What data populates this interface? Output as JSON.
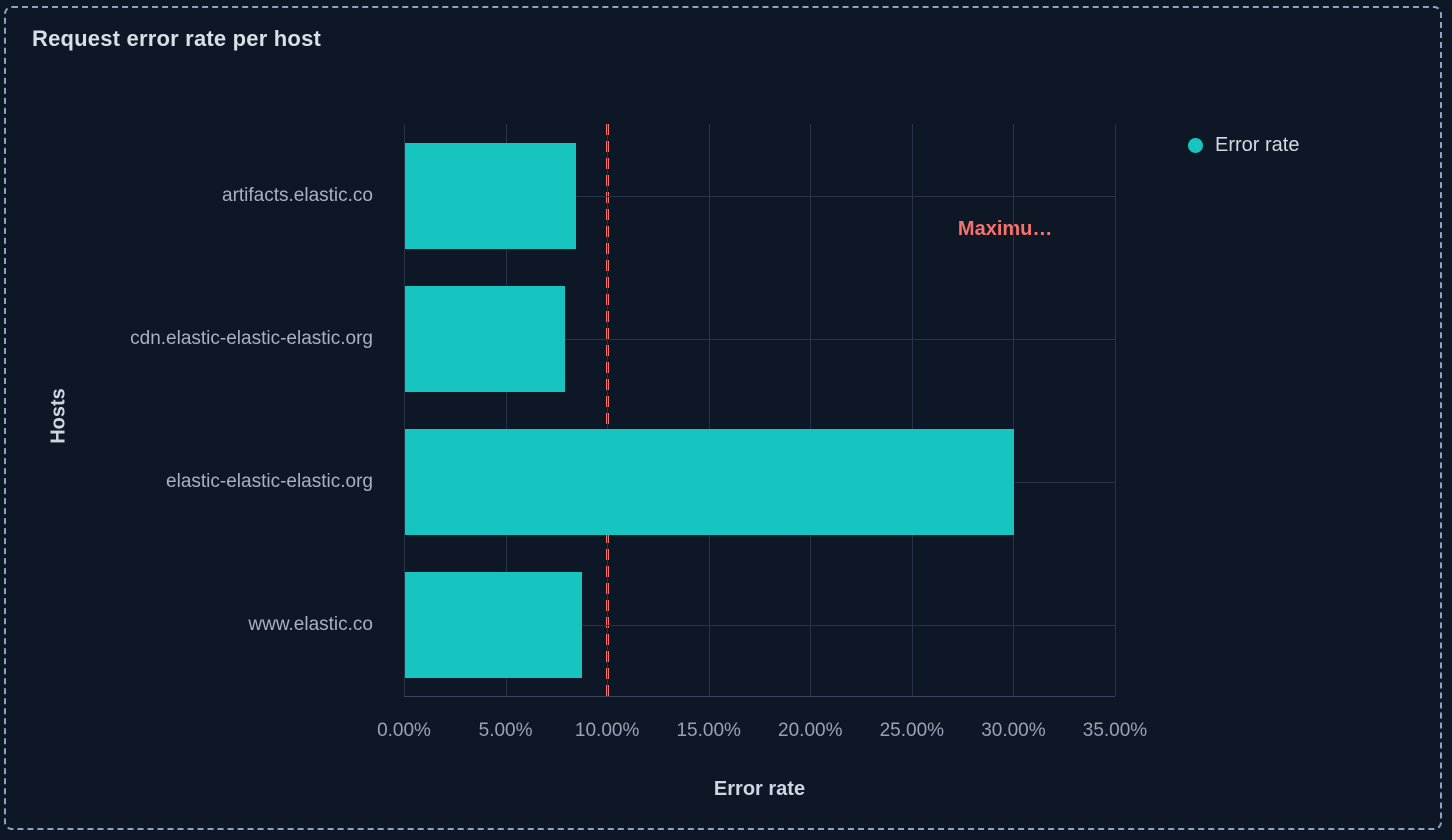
{
  "panel": {
    "title": "Request error rate per host"
  },
  "legend": {
    "items": [
      {
        "label": "Error rate",
        "color": "#16c5c0"
      }
    ]
  },
  "chart_data": {
    "type": "bar",
    "orientation": "horizontal",
    "title": "Request error rate per host",
    "categories": [
      "artifacts.elastic.co",
      "cdn.elastic-elastic-elastic.org",
      "elastic-elastic-elastic.org",
      "www.elastic.co"
    ],
    "series": [
      {
        "name": "Error rate",
        "values": [
          8.4,
          7.9,
          30.0,
          8.7
        ]
      }
    ],
    "unit": "%",
    "xlabel": "Error rate",
    "ylabel": "Hosts",
    "xlim": [
      0,
      35
    ],
    "x_ticks": [
      "0.00%",
      "5.00%",
      "10.00%",
      "15.00%",
      "20.00%",
      "25.00%",
      "30.00%",
      "35.00%"
    ],
    "grid": true,
    "legend_position": "top-right",
    "reference_line": {
      "value": 10,
      "label": "Maximu…",
      "style": "dashed"
    }
  },
  "colors": {
    "bar": "#16c5c0",
    "reference": "#f6726a",
    "background": "#0e1726",
    "border": "#8da3c4",
    "gridline": "#27334b"
  }
}
